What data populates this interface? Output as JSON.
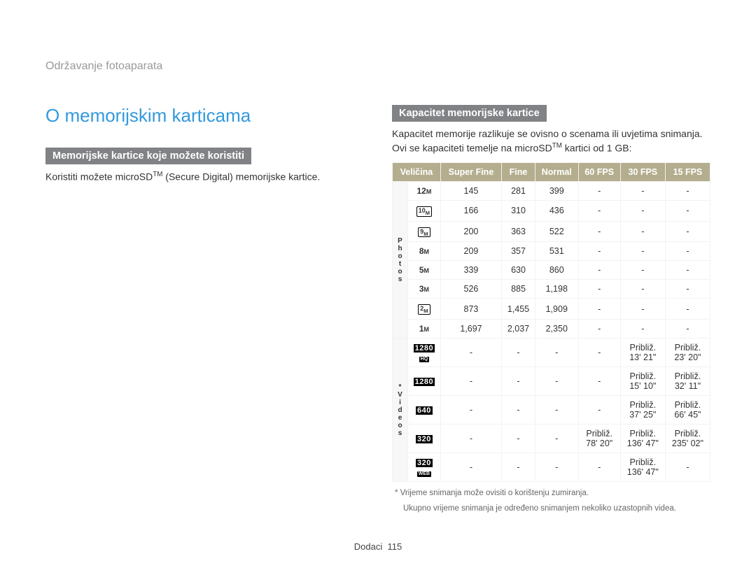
{
  "breadcrumb": "Održavanje fotoaparata",
  "page_title": "O memorijskim karticama",
  "left": {
    "section_heading": "Memorijske kartice koje možete koristiti",
    "body_prefix": "Koristiti možete microSD",
    "body_sup": "TM",
    "body_suffix": " (Secure Digital) memorijske kartice."
  },
  "right": {
    "section_heading": "Kapacitet memorijske kartice",
    "body_line1": "Kapacitet memorije razlikuje se ovisno o scenama ili uvjetima snimanja. Ovi se kapaciteti temelje na microSD",
    "body_sup": "TM",
    "body_line2": " kartici od 1 GB:"
  },
  "table": {
    "headers": [
      "Veličina",
      "Super Fine",
      "Fine",
      "Normal",
      "60 FPS",
      "30 FPS",
      "15 FPS"
    ],
    "photos_label": "P\nh\no\nt\no\ns",
    "videos_label": "*\nV\ni\nd\ne\no\ns",
    "photo_rows": [
      {
        "size": "12m",
        "style": "bold",
        "sf": "145",
        "f": "281",
        "n": "399",
        "c60": "-",
        "c30": "-",
        "c15": "-"
      },
      {
        "size": "10m",
        "style": "box",
        "sf": "166",
        "f": "310",
        "n": "436",
        "c60": "-",
        "c30": "-",
        "c15": "-"
      },
      {
        "size": "9m",
        "style": "box",
        "sf": "200",
        "f": "363",
        "n": "522",
        "c60": "-",
        "c30": "-",
        "c15": "-"
      },
      {
        "size": "8m",
        "style": "bold",
        "sf": "209",
        "f": "357",
        "n": "531",
        "c60": "-",
        "c30": "-",
        "c15": "-"
      },
      {
        "size": "5m",
        "style": "bold",
        "sf": "339",
        "f": "630",
        "n": "860",
        "c60": "-",
        "c30": "-",
        "c15": "-"
      },
      {
        "size": "3m",
        "style": "bold",
        "sf": "526",
        "f": "885",
        "n": "1,198",
        "c60": "-",
        "c30": "-",
        "c15": "-"
      },
      {
        "size": "2m",
        "style": "box",
        "sf": "873",
        "f": "1,455",
        "n": "1,909",
        "c60": "-",
        "c30": "-",
        "c15": "-"
      },
      {
        "size": "1m",
        "style": "bold",
        "sf": "1,697",
        "f": "2,037",
        "n": "2,350",
        "c60": "-",
        "c30": "-",
        "c15": "-"
      }
    ],
    "video_rows": [
      {
        "size": "1280",
        "badge": "HQ",
        "sf": "-",
        "f": "-",
        "n": "-",
        "c60": "-",
        "c30": "Približ.\n13' 21\"",
        "c15": "Približ.\n23' 20\""
      },
      {
        "size": "1280",
        "badge": "",
        "sf": "-",
        "f": "-",
        "n": "-",
        "c60": "-",
        "c30": "Približ.\n15' 10\"",
        "c15": "Približ.\n32' 11\""
      },
      {
        "size": "640",
        "badge": "",
        "sf": "-",
        "f": "-",
        "n": "-",
        "c60": "-",
        "c30": "Približ.\n37' 25\"",
        "c15": "Približ.\n66' 45\""
      },
      {
        "size": "320",
        "badge": "",
        "sf": "-",
        "f": "-",
        "n": "-",
        "c60": "Približ.\n78' 20\"",
        "c30": "Približ.\n136' 47\"",
        "c15": "Približ.\n235' 02\""
      },
      {
        "size": "320",
        "badge": "WEB",
        "sf": "-",
        "f": "-",
        "n": "-",
        "c60": "-",
        "c30": "Približ.\n136' 47\"",
        "c15": "-"
      }
    ]
  },
  "footnote1": "* Vrijeme snimanja može ovisiti o korištenju zumiranja.",
  "footnote2": "Ukupno vrijeme snimanja je određeno snimanjem nekoliko uzastopnih videa.",
  "footer_section": "Dodaci",
  "footer_page": "115"
}
